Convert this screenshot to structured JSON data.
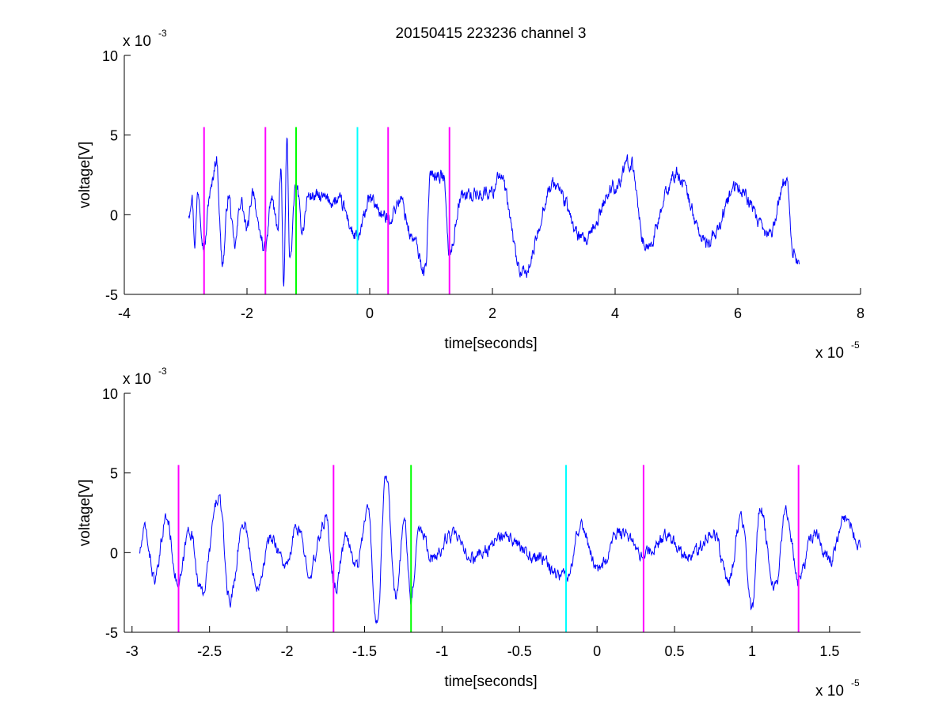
{
  "figure": {
    "title": "20150415 223236 channel 3"
  },
  "chart_data": [
    {
      "type": "line",
      "title": "20150415 223236 channel 3",
      "xlabel": "time[seconds]",
      "ylabel": "voltage[V]",
      "xlim": [
        -4e-05,
        8e-05
      ],
      "ylim": [
        -0.005,
        0.01
      ],
      "x_ticks": [
        -4e-05,
        -2e-05,
        0,
        2e-05,
        4e-05,
        6e-05,
        8e-05
      ],
      "x_tick_labels": [
        "-4",
        "-2",
        "0",
        "2",
        "4",
        "6",
        "8"
      ],
      "y_ticks": [
        -0.005,
        0,
        0.005,
        0.01
      ],
      "y_tick_labels": [
        "-5",
        "0",
        "5",
        "10"
      ],
      "x_multiplier": {
        "base": "x 10",
        "exponent": "-5"
      },
      "y_multiplier": {
        "base": "x 10",
        "exponent": "-3"
      },
      "grid": false,
      "series": [
        {
          "color": "#0000ff",
          "x_start": -2.95e-05,
          "x_end": 7e-05,
          "approx_envelope_V": [
            -0.0045,
            0.0048
          ],
          "keypoints": [
            [
              -2.95e-05,
              0.0001
            ],
            [
              -2.9e-05,
              0.0013
            ],
            [
              -2.85e-05,
              -0.0017
            ],
            [
              -2.8e-05,
              0.0015
            ],
            [
              -2.7e-05,
              -0.0021
            ],
            [
              -2.6e-05,
              0.0014
            ],
            [
              -2.5e-05,
              0.0035
            ],
            [
              -2.4e-05,
              -0.003
            ],
            [
              -2.3e-05,
              0.0012
            ],
            [
              -2.2e-05,
              -0.002
            ],
            [
              -2.1e-05,
              0.0009
            ],
            [
              -2e-05,
              -0.001
            ],
            [
              -1.9e-05,
              0.0016
            ],
            [
              -1.8e-05,
              -0.0012
            ],
            [
              -1.7e-05,
              -0.0022
            ],
            [
              -1.6e-05,
              0.001
            ],
            [
              -1.5e-05,
              -0.0008
            ],
            [
              -1.45e-05,
              0.0026
            ],
            [
              -1.4e-05,
              -0.0044
            ],
            [
              -1.35e-05,
              0.0047
            ],
            [
              -1.3e-05,
              -0.0028
            ],
            [
              -1.2e-05,
              0.0019
            ],
            [
              -1.1e-05,
              -0.0009
            ],
            [
              -1e-05,
              0.0012
            ],
            [
              -5e-06,
              0.0008
            ],
            [
              -2e-06,
              -0.0015
            ],
            [
              0.0,
              0.0009
            ],
            [
              3e-06,
              -0.0003
            ],
            [
              5e-06,
              0.0009
            ],
            [
              7e-06,
              -0.0015
            ],
            [
              9e-06,
              -0.0035
            ],
            [
              1e-05,
              0.0027
            ],
            [
              1.2e-05,
              0.0024
            ],
            [
              1.3e-05,
              -0.0024
            ],
            [
              1.5e-05,
              0.0012
            ],
            [
              2e-05,
              0.0014
            ],
            [
              2.1e-05,
              0.0026
            ],
            [
              2.5e-05,
              -0.0038
            ],
            [
              3e-05,
              0.0019
            ],
            [
              3.5e-05,
              -0.0017
            ],
            [
              4e-05,
              0.0018
            ],
            [
              4.25e-05,
              0.0033
            ],
            [
              4.5e-05,
              -0.0021
            ],
            [
              5e-05,
              0.0025
            ],
            [
              5.5e-05,
              -0.0018
            ],
            [
              6e-05,
              0.0017
            ],
            [
              6.5e-05,
              -0.0013
            ],
            [
              6.8e-05,
              0.0022
            ],
            [
              6.9e-05,
              -0.0024
            ],
            [
              7e-05,
              -0.003
            ]
          ]
        }
      ],
      "markers": [
        {
          "x": -2.7e-05,
          "color": "#ff00ff"
        },
        {
          "x": -1.7e-05,
          "color": "#ff00ff"
        },
        {
          "x": -1.2e-05,
          "color": "#00ff00"
        },
        {
          "x": -2e-06,
          "color": "#00ffff"
        },
        {
          "x": 3e-06,
          "color": "#ff00ff"
        },
        {
          "x": 1.3e-05,
          "color": "#ff00ff"
        }
      ],
      "marker_ylim": [
        -0.005,
        0.0055
      ]
    },
    {
      "type": "line",
      "xlabel": "time[seconds]",
      "ylabel": "voltage[V]",
      "xlim": [
        -3.05e-05,
        1.7e-05
      ],
      "ylim": [
        -0.005,
        0.01
      ],
      "x_ticks": [
        -3e-05,
        -2.5e-05,
        -2e-05,
        -1.5e-05,
        -1e-05,
        -5e-06,
        0,
        5e-06,
        1e-05,
        1.5e-05
      ],
      "x_tick_labels": [
        "-3",
        "-2.5",
        "-2",
        "-1.5",
        "-1",
        "-0.5",
        "0",
        "0.5",
        "1",
        "1.5"
      ],
      "y_ticks": [
        -0.005,
        0,
        0.005,
        0.01
      ],
      "y_tick_labels": [
        "-5",
        "0",
        "5",
        "10"
      ],
      "x_multiplier": {
        "base": "x 10",
        "exponent": "-5"
      },
      "y_multiplier": {
        "base": "x 10",
        "exponent": "-3"
      },
      "grid": false,
      "series": [
        {
          "color": "#0000ff",
          "x_start": -2.95e-05,
          "x_end": 1.7e-05,
          "approx_envelope_V": [
            -0.0045,
            0.0048
          ],
          "keypoints": [
            [
              -2.95e-05,
              0.0001
            ],
            [
              -2.92e-05,
              0.0014
            ],
            [
              -2.85e-05,
              -0.0017
            ],
            [
              -2.78e-05,
              0.0022
            ],
            [
              -2.7e-05,
              -0.0021
            ],
            [
              -2.63e-05,
              0.0015
            ],
            [
              -2.55e-05,
              -0.0025
            ],
            [
              -2.44e-05,
              0.0035
            ],
            [
              -2.37e-05,
              -0.003
            ],
            [
              -2.28e-05,
              0.0019
            ],
            [
              -2.2e-05,
              -0.002
            ],
            [
              -2.1e-05,
              0.0009
            ],
            [
              -2e-05,
              -0.0009
            ],
            [
              -1.94e-05,
              0.0016
            ],
            [
              -1.85e-05,
              -0.0011
            ],
            [
              -1.75e-05,
              0.0021
            ],
            [
              -1.69e-05,
              -0.0022
            ],
            [
              -1.62e-05,
              0.0009
            ],
            [
              -1.55e-05,
              -0.0008
            ],
            [
              -1.48e-05,
              0.0027
            ],
            [
              -1.42e-05,
              -0.0045
            ],
            [
              -1.36e-05,
              0.0048
            ],
            [
              -1.3e-05,
              -0.0028
            ],
            [
              -1.24e-05,
              0.0019
            ],
            [
              -1.2e-05,
              -0.0029
            ],
            [
              -1.15e-05,
              0.0016
            ],
            [
              -1.05e-05,
              -0.0004
            ],
            [
              -9.5e-06,
              0.0011
            ],
            [
              -8e-06,
              -0.0003
            ],
            [
              -6e-06,
              0.0009
            ],
            [
              -4e-06,
              -0.0003
            ],
            [
              -2e-06,
              -0.0015
            ],
            [
              -1e-06,
              0.0018
            ],
            [
              0.0,
              -0.001
            ],
            [
              1.5e-06,
              0.0012
            ],
            [
              3e-06,
              -0.0001
            ],
            [
              4.5e-06,
              0.0009
            ],
            [
              6e-06,
              -0.0002
            ],
            [
              7.5e-06,
              0.0013
            ],
            [
              8.5e-06,
              -0.0018
            ],
            [
              9.3e-06,
              0.0023
            ],
            [
              1e-05,
              -0.0035
            ],
            [
              1.05e-05,
              0.0028
            ],
            [
              1.15e-05,
              -0.0022
            ],
            [
              1.22e-05,
              0.0027
            ],
            [
              1.3e-05,
              -0.0018
            ],
            [
              1.4e-05,
              0.0012
            ],
            [
              1.5e-05,
              -0.0004
            ],
            [
              1.6e-05,
              0.0022
            ],
            [
              1.7e-05,
              0.0003
            ]
          ]
        }
      ],
      "markers": [
        {
          "x": -2.7e-05,
          "color": "#ff00ff"
        },
        {
          "x": -1.7e-05,
          "color": "#ff00ff"
        },
        {
          "x": -1.2e-05,
          "color": "#00ff00"
        },
        {
          "x": -2e-06,
          "color": "#00ffff"
        },
        {
          "x": 3e-06,
          "color": "#ff00ff"
        },
        {
          "x": 1.3e-05,
          "color": "#ff00ff"
        }
      ],
      "marker_ylim": [
        -0.005,
        0.0055
      ]
    }
  ]
}
